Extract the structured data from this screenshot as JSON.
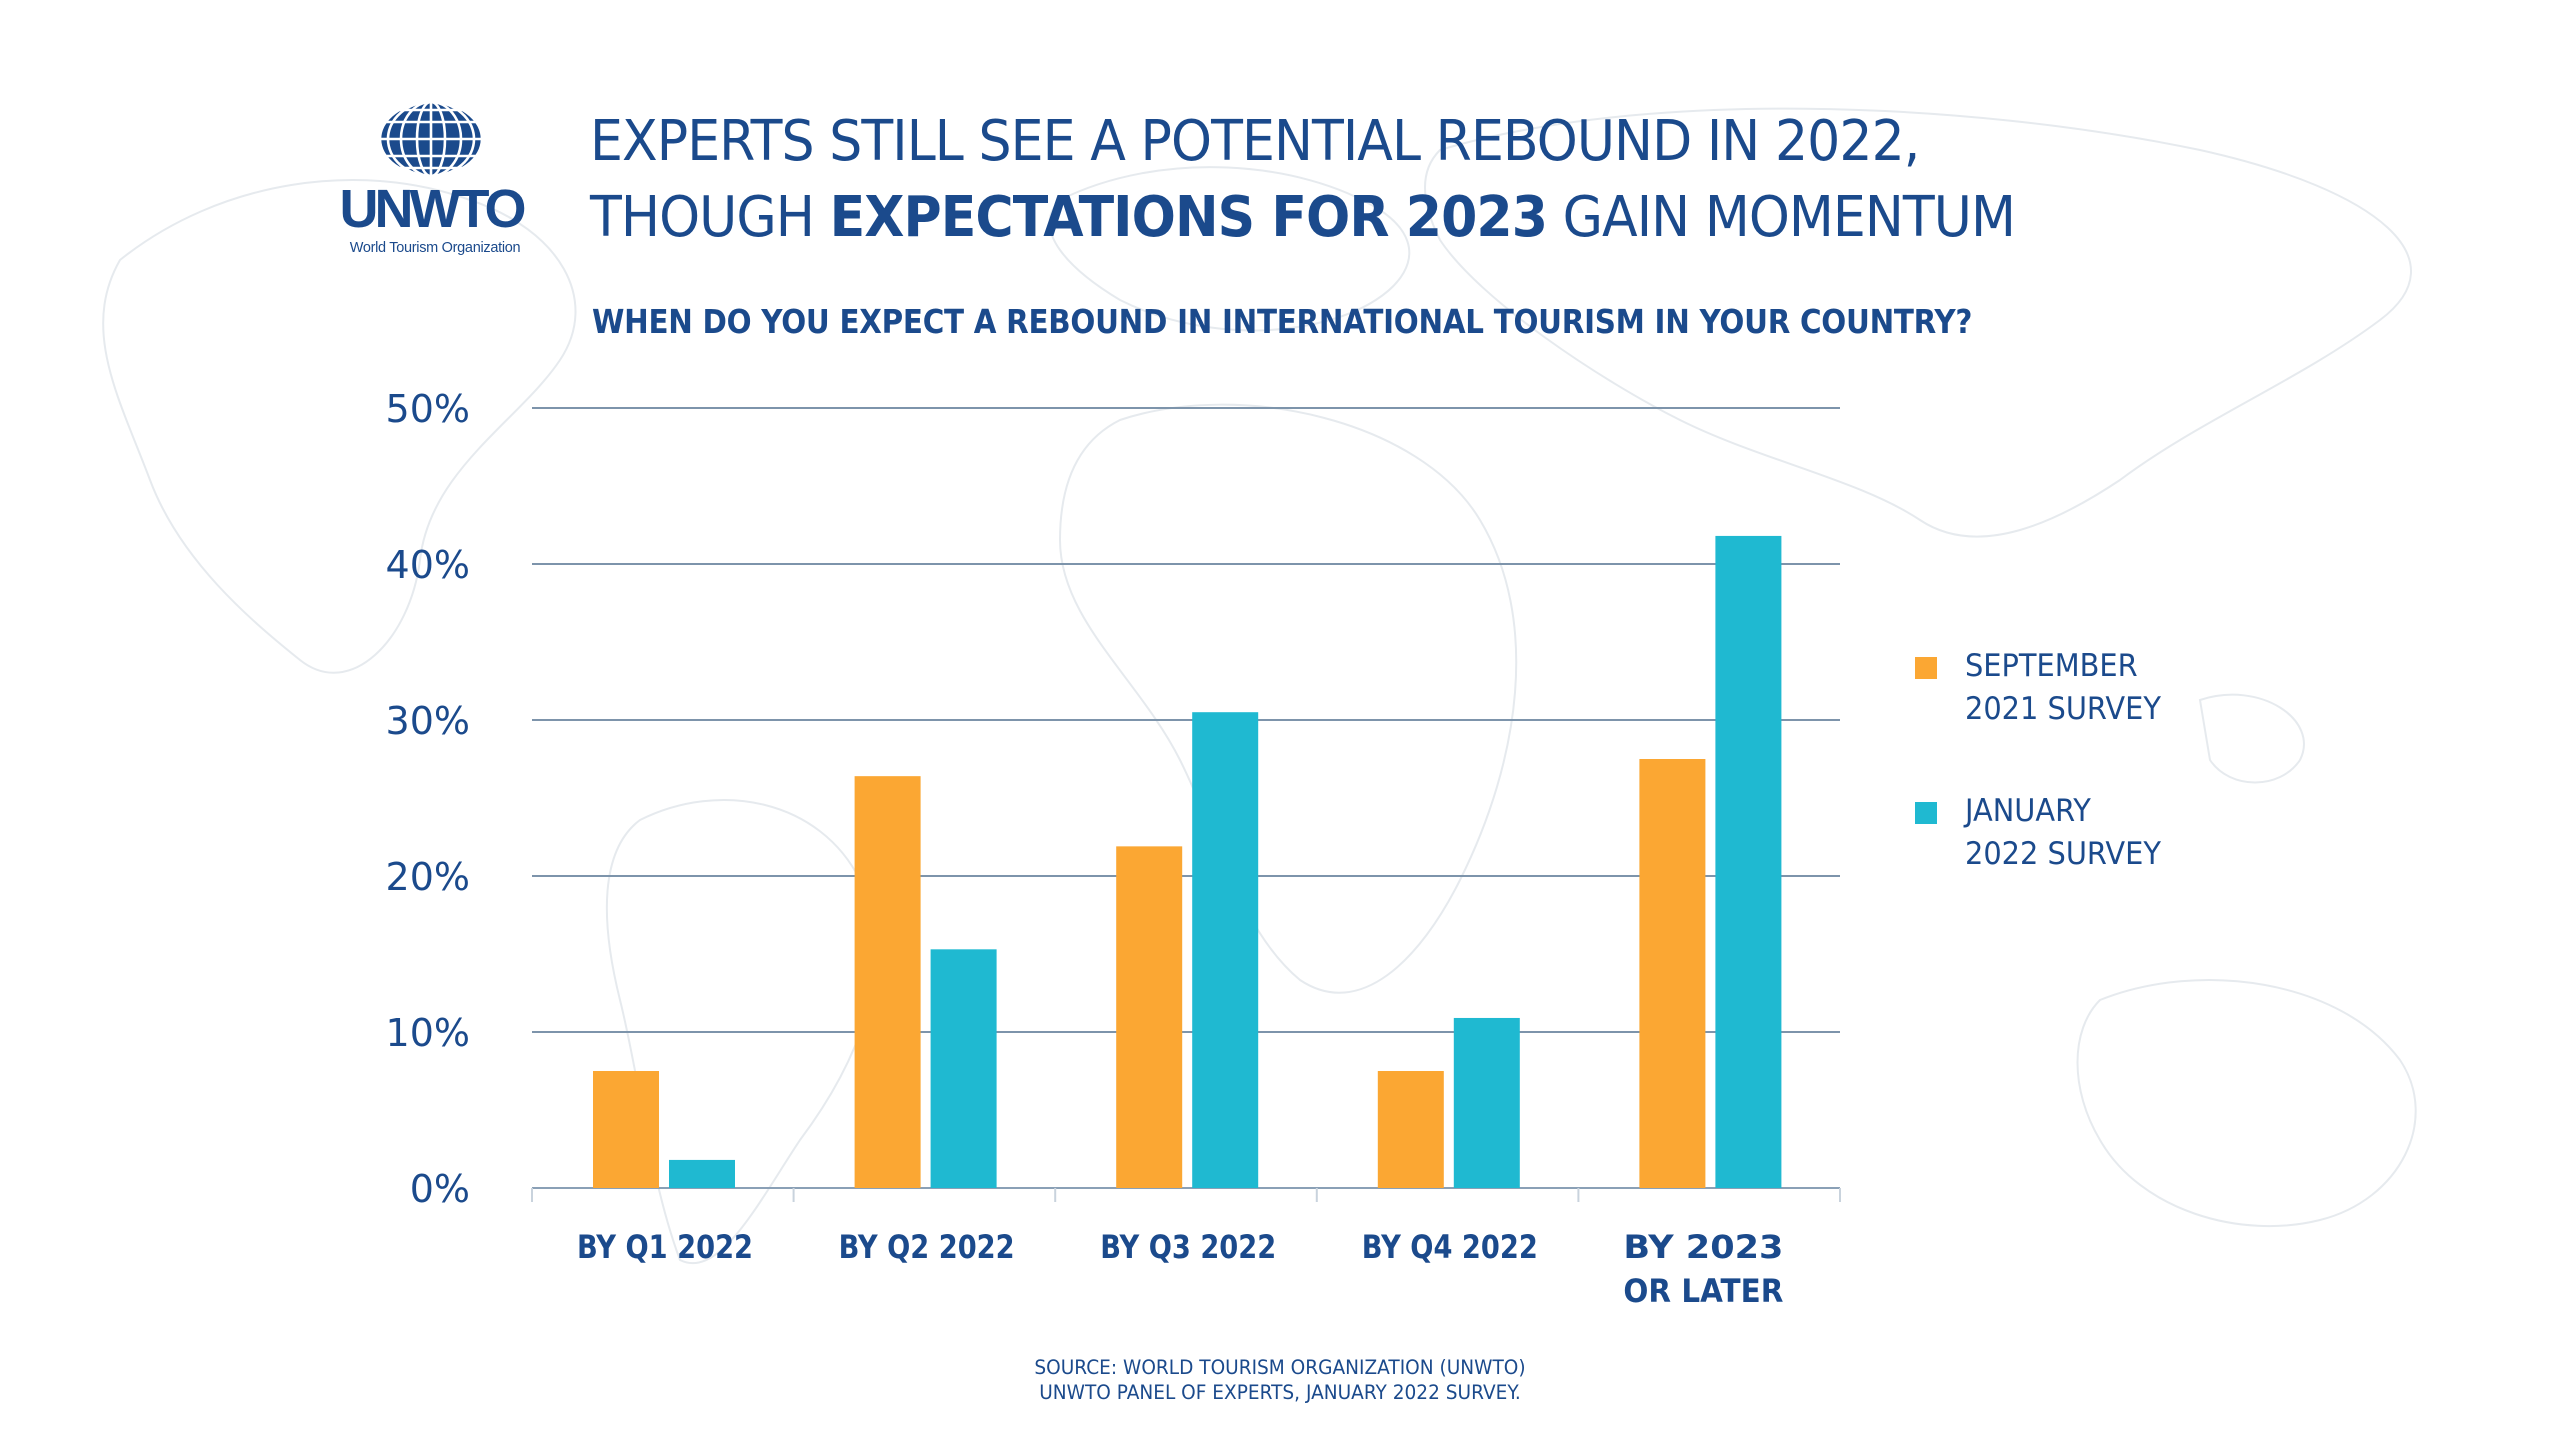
{
  "logo": {
    "name": "UNWTO",
    "subtitle": "World Tourism Organization"
  },
  "header": {
    "title_line1": "EXPERTS STILL SEE A POTENTIAL REBOUND IN 2022,",
    "title_line2_prefix": "THOUGH ",
    "title_line2_bold": "EXPECTATIONS FOR 2023",
    "title_line2_suffix": " GAIN MOMENTUM",
    "subtitle": "WHEN DO YOU EXPECT A REBOUND IN INTERNATIONAL TOURISM IN YOUR COUNTRY?"
  },
  "colors": {
    "text": "#1b4a8c",
    "series_sep_2021": "#fba733",
    "series_jan_2022": "#1fb9d1",
    "gridline": "#7d94ab"
  },
  "chart_data": {
    "type": "bar",
    "title": "WHEN DO YOU EXPECT A REBOUND IN INTERNATIONAL TOURISM IN YOUR COUNTRY?",
    "xlabel": "",
    "ylabel": "",
    "categories": [
      [
        "BY Q1 2022"
      ],
      [
        "BY Q2 2022"
      ],
      [
        "BY Q3 2022"
      ],
      [
        "BY Q4 2022"
      ],
      [
        "BY 2023",
        "OR LATER"
      ]
    ],
    "series": [
      {
        "name": "SEPTEMBER\n2021 SURVEY",
        "color": "#fba733",
        "values": [
          7.5,
          26.4,
          21.9,
          7.5,
          27.5
        ]
      },
      {
        "name": "JANUARY\n2022 SURVEY",
        "color": "#1fb9d1",
        "values": [
          1.8,
          15.3,
          30.5,
          10.9,
          41.8
        ]
      }
    ],
    "ylim": [
      0,
      50
    ],
    "yticks": [
      0,
      10,
      20,
      30,
      40,
      50
    ],
    "ytick_labels": [
      "0%",
      "10%",
      "20%",
      "30%",
      "40%",
      "50%"
    ],
    "grid": true,
    "legend_position": "right"
  },
  "source": {
    "line1": "SOURCE: WORLD TOURISM ORGANIZATION (UNWTO)",
    "line2": "UNWTO PANEL OF EXPERTS, JANUARY 2022 SURVEY."
  }
}
